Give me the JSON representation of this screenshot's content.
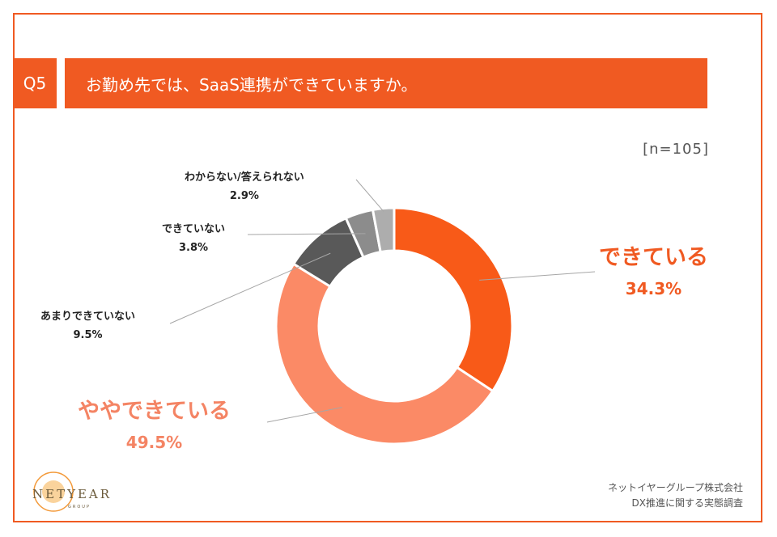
{
  "header": {
    "question_no": "Q5",
    "question_text": "お勤め先では、SaaS連携ができていますか。"
  },
  "sample_size": "[n=105]",
  "chart_data": {
    "type": "pie",
    "donut": true,
    "categories": [
      "できている",
      "ややできている",
      "あまりできていない",
      "できていない",
      "わからない/答えられない"
    ],
    "values": [
      34.3,
      49.5,
      9.5,
      3.8,
      2.9
    ],
    "value_labels": [
      "34.3%",
      "49.5%",
      "9.5%",
      "3.8%",
      "2.9%"
    ],
    "colors": [
      "#f85a18",
      "#fb8a66",
      "#595959",
      "#8c8c8c",
      "#adadad"
    ],
    "label_colors": [
      "#f05a22",
      "#f48464",
      "#222222",
      "#222222",
      "#222222"
    ],
    "start": "top",
    "direction": "clockwise"
  },
  "footer": {
    "line1": "ネットイヤーグループ株式会社",
    "line2": "DX推進に関する実態調査"
  },
  "logo": {
    "wordmark": "NETYEAR",
    "sub": "GROUP",
    "color": "#f39a3a"
  }
}
